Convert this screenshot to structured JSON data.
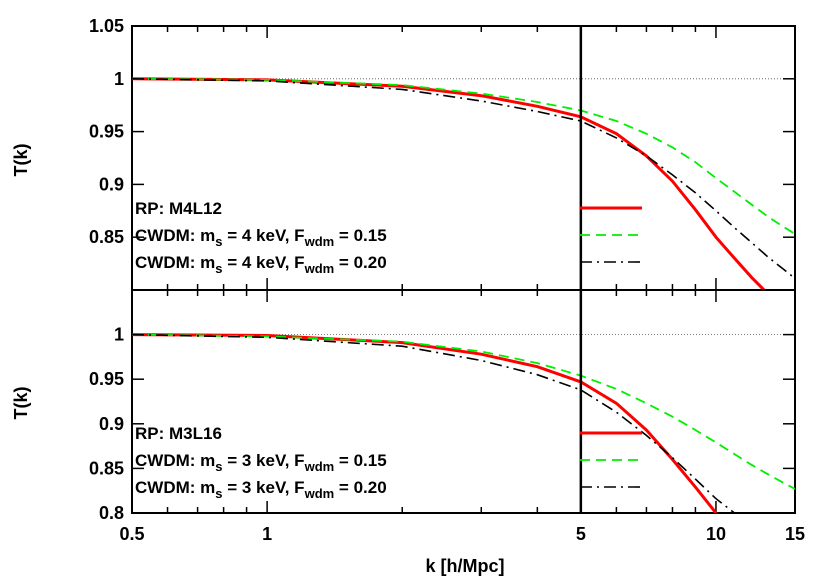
{
  "chart_data": [
    {
      "type": "line",
      "panel": "top",
      "x_scale": "log",
      "xlim": [
        0.5,
        15
      ],
      "ylim": [
        0.8,
        1.05
      ],
      "xlabel": "k [h/Mpc]",
      "ylabel": "T(k)",
      "x_ticks": [
        "0.5",
        "1",
        "5",
        "10",
        "15"
      ],
      "y_ticks": [
        "0.85",
        "0.9",
        "0.95",
        "1",
        "1.05"
      ],
      "vline_x": 5,
      "reference_y": 1,
      "legend_location": "bottom-left",
      "series": [
        {
          "label_main": "RP: M4L12",
          "style": "solid",
          "color": "#ff0000",
          "x": [
            0.5,
            1,
            2,
            3,
            4,
            5,
            6,
            7,
            8,
            9,
            10,
            11,
            12,
            12.8
          ],
          "y": [
            1.0,
            0.999,
            0.993,
            0.984,
            0.974,
            0.964,
            0.948,
            0.927,
            0.903,
            0.876,
            0.85,
            0.83,
            0.812,
            0.8
          ]
        },
        {
          "label_main": "CWDM: m",
          "label_sub1": "s",
          "label_mid": " = 4 keV, F",
          "label_sub2": "wdm",
          "label_end": " = 0.15",
          "style": "dashed",
          "color": "#00ee00",
          "x": [
            0.5,
            1,
            2,
            3,
            4,
            5,
            6,
            7,
            8,
            9,
            10,
            11,
            12,
            13,
            14,
            15
          ],
          "y": [
            1.0,
            0.999,
            0.994,
            0.986,
            0.978,
            0.97,
            0.96,
            0.948,
            0.935,
            0.921,
            0.906,
            0.893,
            0.881,
            0.87,
            0.861,
            0.853
          ]
        },
        {
          "label_main": "CWDM: m",
          "label_sub1": "s",
          "label_mid": " = 4 keV, F",
          "label_sub2": "wdm",
          "label_end": " = 0.20",
          "style": "dashdot",
          "color": "#000000",
          "x": [
            0.5,
            1,
            2,
            3,
            4,
            5,
            6,
            7,
            8,
            9,
            10,
            11,
            12,
            13,
            14,
            15
          ],
          "y": [
            1.0,
            0.998,
            0.99,
            0.979,
            0.969,
            0.96,
            0.944,
            0.927,
            0.909,
            0.892,
            0.875,
            0.859,
            0.845,
            0.832,
            0.821,
            0.811
          ]
        }
      ]
    },
    {
      "type": "line",
      "panel": "bottom",
      "x_scale": "log",
      "xlim": [
        0.5,
        15
      ],
      "ylim": [
        0.8,
        1.05
      ],
      "xlabel": "k [h/Mpc]",
      "ylabel": "T(k)",
      "x_ticks": [
        "0.5",
        "1",
        "5",
        "10",
        "15"
      ],
      "y_ticks": [
        "0.8",
        "0.85",
        "0.9",
        "0.95",
        "1"
      ],
      "vline_x": 5,
      "reference_y": 1,
      "legend_location": "bottom-left",
      "series": [
        {
          "label_main": "RP: M3L16",
          "style": "solid",
          "color": "#ff0000",
          "x": [
            0.5,
            1,
            2,
            3,
            4,
            5,
            6,
            7,
            8,
            9,
            10
          ],
          "y": [
            1.0,
            0.999,
            0.991,
            0.978,
            0.964,
            0.947,
            0.923,
            0.893,
            0.86,
            0.829,
            0.8
          ]
        },
        {
          "label_main": "CWDM: m",
          "label_sub1": "s",
          "label_mid": " = 3 keV, F",
          "label_sub2": "wdm",
          "label_end": " = 0.15",
          "style": "dashed",
          "color": "#00ee00",
          "x": [
            0.5,
            1,
            2,
            3,
            4,
            5,
            6,
            7,
            8,
            9,
            10,
            11,
            12,
            13,
            14,
            15
          ],
          "y": [
            1.0,
            0.998,
            0.992,
            0.981,
            0.968,
            0.954,
            0.939,
            0.923,
            0.908,
            0.893,
            0.879,
            0.866,
            0.854,
            0.844,
            0.835,
            0.827
          ]
        },
        {
          "label_main": "CWDM: m",
          "label_sub1": "s",
          "label_mid": " = 3 keV, F",
          "label_sub2": "wdm",
          "label_end": " = 0.20",
          "style": "dashdot",
          "color": "#000000",
          "x": [
            0.5,
            1,
            2,
            3,
            4,
            5,
            6,
            7,
            8,
            9,
            10,
            11,
            12
          ],
          "y": [
            1.0,
            0.997,
            0.987,
            0.971,
            0.955,
            0.938,
            0.913,
            0.887,
            0.862,
            0.838,
            0.816,
            0.8,
            0.788
          ]
        }
      ]
    }
  ]
}
